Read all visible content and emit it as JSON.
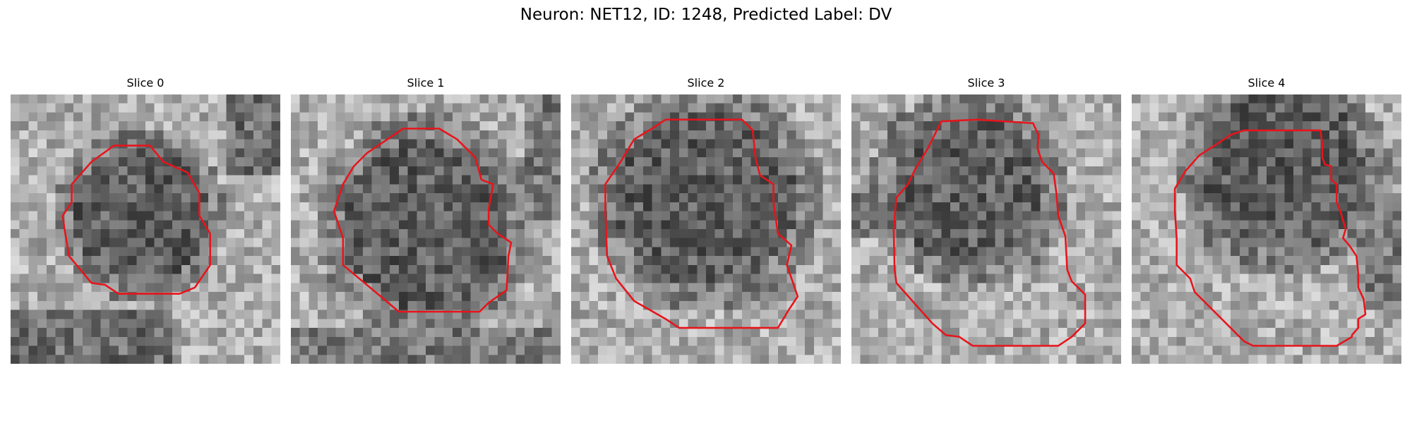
{
  "figure": {
    "title": "Neuron: NET12, ID: 1248, Predicted Label: DV",
    "contour_color": "#e8141b"
  },
  "panels": [
    {
      "title": "Slice 0",
      "dark_blob": {
        "cx": 14.5,
        "cy": 13.5,
        "r": 7.5
      }
    },
    {
      "title": "Slice 1",
      "dark_blob": {
        "cx": 15.0,
        "cy": 14.5,
        "r": 9.5
      }
    },
    {
      "title": "Slice 2",
      "dark_blob": {
        "cx": 15.0,
        "cy": 11.5,
        "r": 10.0
      }
    },
    {
      "title": "Slice 3",
      "dark_blob": {
        "cx": 13.0,
        "cy": 10.5,
        "r": 8.5
      }
    },
    {
      "title": "Slice 4",
      "dark_blob": {
        "cx": 17.0,
        "cy": 8.5,
        "r": 9.0
      }
    }
  ]
}
